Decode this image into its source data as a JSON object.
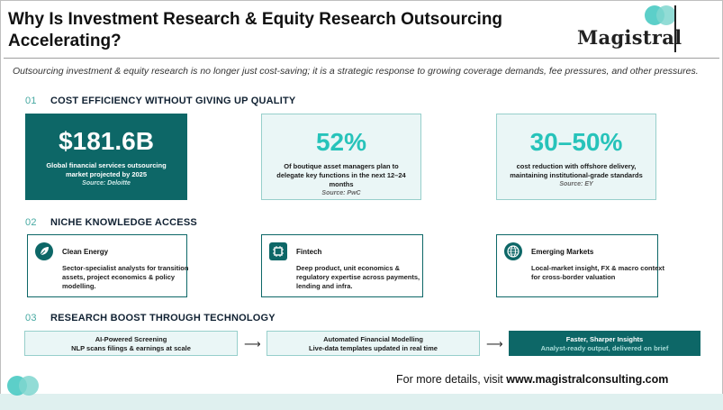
{
  "title_line1": "Why Is Investment Research & Equity Research Outsourcing",
  "title_line2": "Accelerating?",
  "logo": {
    "text": "Magistral",
    "colors": [
      "#3fc7bf",
      "#7fd6cf"
    ]
  },
  "intro": "Outsourcing investment & equity research is no longer just cost-saving; it is a strategic response to growing coverage demands, fee pressures, and other pressures.",
  "sections": [
    {
      "num": "01",
      "title": "COST EFFICIENCY WITHOUT GIVING UP QUALITY"
    },
    {
      "num": "02",
      "title": "NICHE KNOWLEDGE ACCESS"
    },
    {
      "num": "03",
      "title": "RESEARCH BOOST THROUGH TECHNOLOGY"
    }
  ],
  "stats": [
    {
      "value": "$181.6B",
      "desc": "Global financial services outsourcing market projected by 2025",
      "source": "Source: Deloitte"
    },
    {
      "value": "52%",
      "desc": "Of boutique asset managers plan to delegate key functions in the next 12–24 months",
      "source": "Source: PwC"
    },
    {
      "value": "30–50%",
      "desc": "cost reduction with offshore delivery, maintaining institutional-grade standards",
      "source": "Source: EY"
    }
  ],
  "niche": [
    {
      "icon": "leaf-icon",
      "title": "Clean Energy",
      "desc": "Sector-specialist analysts for transition assets, project economics & policy modelling."
    },
    {
      "icon": "chip-icon",
      "title": "Fintech",
      "desc": "Deep product, unit economics & regulatory expertise across payments, lending and infra."
    },
    {
      "icon": "globe-icon",
      "title": "Emerging Markets",
      "desc": "Local-market insight, FX & macro context for cross-border valuation"
    }
  ],
  "tech": [
    {
      "title": "AI-Powered Screening",
      "desc": "NLP scans filings & earnings at scale"
    },
    {
      "title": "Automated Financial Modelling",
      "desc": "Live-data templates updated in real time"
    },
    {
      "title": "Faster, Sharper Insights",
      "desc": "Analyst-ready output, delivered on brief"
    }
  ],
  "arrow_glyph": "⟶",
  "footer": {
    "prefix": "For more details, visit ",
    "url": "www.magistralconsulting.com"
  },
  "colors": {
    "dark_teal": "#0d6767",
    "accent": "#27c3ba",
    "light_bg": "#eaf6f6"
  }
}
